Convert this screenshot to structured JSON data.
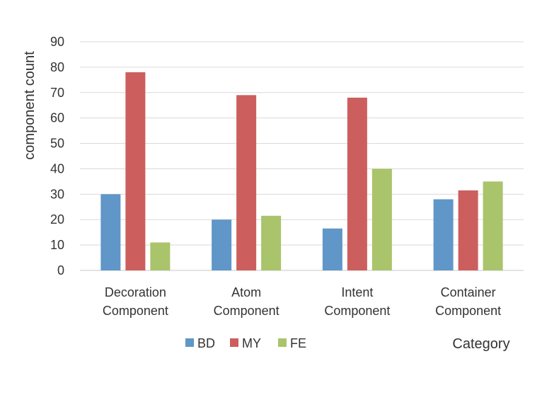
{
  "chart_data": {
    "type": "bar",
    "title": "",
    "xlabel": "Category",
    "ylabel": "component count",
    "ylim": [
      0,
      90
    ],
    "yticks": [
      0,
      10,
      20,
      30,
      40,
      50,
      60,
      70,
      80,
      90
    ],
    "grid": true,
    "legend_position": "bottom",
    "categories": [
      [
        "Decoration",
        "Component"
      ],
      [
        "Atom",
        "Component"
      ],
      [
        "Intent",
        "Component"
      ],
      [
        "Container",
        "Component"
      ]
    ],
    "series": [
      {
        "name": "BD",
        "color": "#6096c8",
        "values": [
          30,
          20,
          16.5,
          28
        ]
      },
      {
        "name": "MY",
        "color": "#cc5f5d",
        "values": [
          78,
          69,
          68,
          31.5
        ]
      },
      {
        "name": "FE",
        "color": "#a9c46a",
        "values": [
          11,
          21.5,
          40,
          35
        ]
      }
    ]
  }
}
